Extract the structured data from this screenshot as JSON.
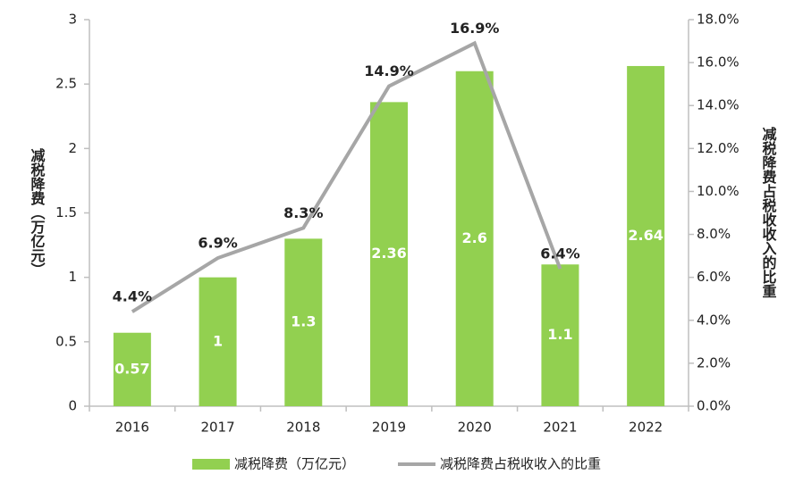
{
  "chart_data": {
    "type": "bar",
    "categories": [
      "2016",
      "2017",
      "2018",
      "2019",
      "2020",
      "2021",
      "2022"
    ],
    "y_label": "减税降费（万亿元）",
    "y2_label": "减税降费占税收收入的比重",
    "ylim": [
      0,
      3
    ],
    "yticks": [
      0,
      0.5,
      1,
      1.5,
      2,
      2.5,
      3
    ],
    "y2lim": [
      0,
      18
    ],
    "y2ticks": [
      {
        "value": 0,
        "label": "0.0%"
      },
      {
        "value": 2,
        "label": "2.0%"
      },
      {
        "value": 4,
        "label": "4.0%"
      },
      {
        "value": 6,
        "label": "6.0%"
      },
      {
        "value": 8,
        "label": "8.0%"
      },
      {
        "value": 10,
        "label": "10.0%"
      },
      {
        "value": 12,
        "label": "12.0%"
      },
      {
        "value": 14,
        "label": "14.0%"
      },
      {
        "value": 16,
        "label": "16.0%"
      },
      {
        "value": 18,
        "label": "18.0%"
      }
    ],
    "legend": "bottom",
    "series": [
      {
        "name": "减税降费（万亿元）",
        "type": "bar",
        "color": "#92d050",
        "values": [
          0.57,
          1,
          1.3,
          2.36,
          2.6,
          1.1,
          2.64
        ]
      },
      {
        "name": "减税降费占税收收入的比重",
        "type": "line",
        "axis": "y2",
        "color": "#a6a6a6",
        "values": [
          4.4,
          6.9,
          8.3,
          14.9,
          16.9,
          6.4,
          null
        ],
        "value_labels": [
          "4.4%",
          "6.9%",
          "8.3%",
          "14.9%",
          "16.9%",
          "6.4%",
          null
        ]
      }
    ]
  }
}
